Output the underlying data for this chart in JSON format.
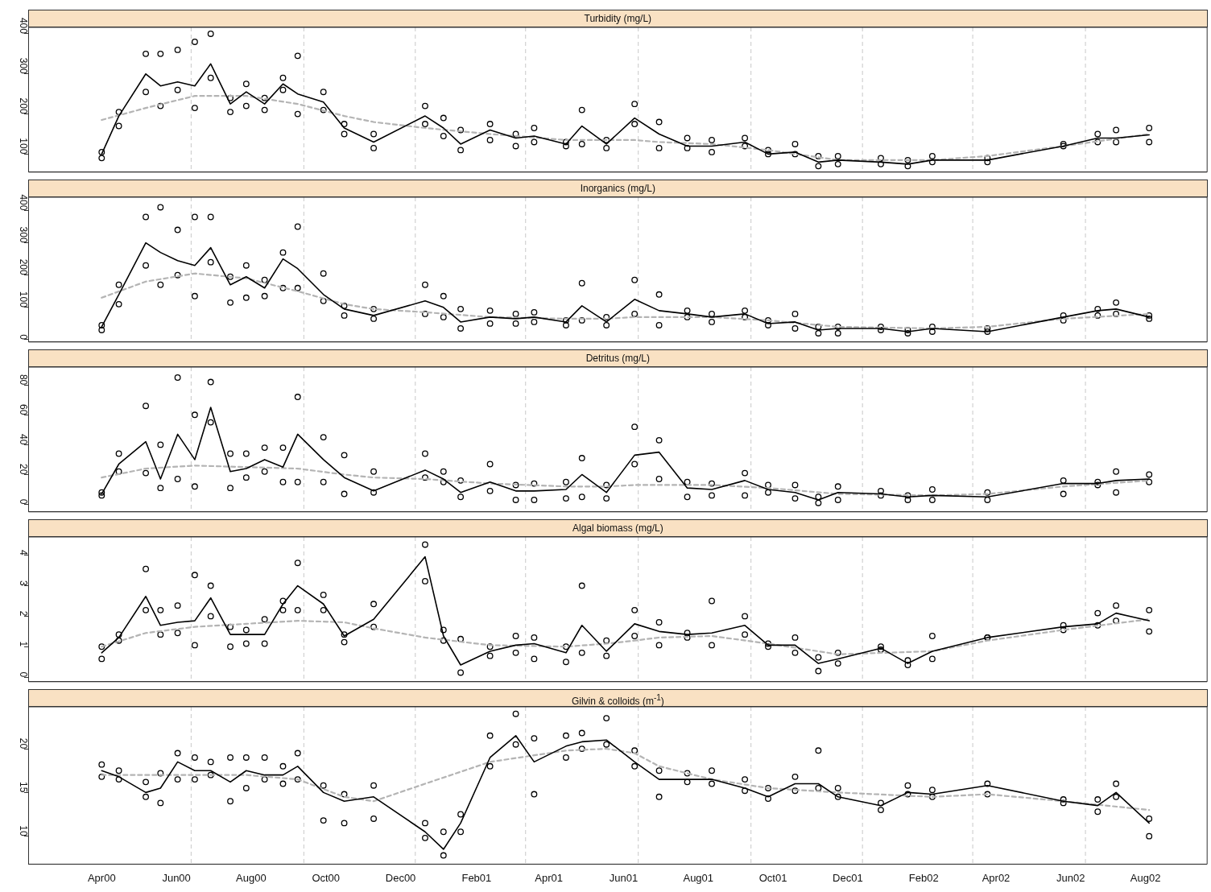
{
  "chart_data": [
    {
      "type": "scatter",
      "title": "Turbidity (mg/L)",
      "marker": "circle",
      "tick_labels": "y",
      "xlim": [
        "2000-02-01",
        "2002-09-20"
      ],
      "ylim": [
        55,
        416
      ],
      "yticks": [
        100,
        200,
        300,
        400
      ],
      "ref_lines": [
        {
          "axis": "x",
          "value": "2000-06-13",
          "color": "#c8c8c8",
          "line_style": "dashed"
        },
        {
          "axis": "x",
          "value": "2000-09-13",
          "color": "#c8c8c8",
          "line_style": "dashed"
        },
        {
          "axis": "x",
          "value": "2000-12-13",
          "color": "#c8c8c8",
          "line_style": "dashed"
        },
        {
          "axis": "x",
          "value": "2001-03-13",
          "color": "#c8c8c8",
          "line_style": "dashed"
        },
        {
          "axis": "x",
          "value": "2001-06-13",
          "color": "#c8c8c8",
          "line_style": "dashed"
        },
        {
          "axis": "x",
          "value": "2001-09-13",
          "color": "#c8c8c8",
          "line_style": "dashed"
        },
        {
          "axis": "x",
          "value": "2001-12-13",
          "color": "#c8c8c8",
          "line_style": "dashed"
        },
        {
          "axis": "x",
          "value": "2002-03-13",
          "color": "#c8c8c8",
          "line_style": "dashed"
        },
        {
          "axis": "x",
          "value": "2002-06-13",
          "color": "#c8c8c8",
          "line_style": "dashed"
        }
      ],
      "x": [
        "2000-04-01",
        "2000-04-15",
        "2000-05-07",
        "2000-05-19",
        "2000-06-02",
        "2000-06-16",
        "2000-06-29",
        "2000-07-15",
        "2000-07-28",
        "2000-08-12",
        "2000-08-27",
        "2000-09-08",
        "2000-09-29",
        "2000-10-16",
        "2000-11-09",
        "2000-12-21",
        "2001-01-05",
        "2001-01-19",
        "2001-02-12",
        "2001-03-05",
        "2001-03-20",
        "2001-04-15",
        "2001-04-28",
        "2001-05-18",
        "2001-06-10",
        "2001-06-30",
        "2001-07-23",
        "2001-08-12",
        "2001-09-08",
        "2001-09-27",
        "2001-10-19",
        "2001-11-07",
        "2001-11-23",
        "2001-12-28",
        "2002-01-19",
        "2002-02-08",
        "2002-03-25",
        "2002-05-26",
        "2002-06-23",
        "2002-07-08",
        "2002-08-04"
      ],
      "series": [
        {
          "type": "scatter",
          "color": "#000000",
          "values": [
            90,
            170,
            255,
            220,
            260,
            215,
            290,
            205,
            220,
            210,
            260,
            200,
            210,
            150,
            115,
            175,
            145,
            110,
            135,
            120,
            130,
            120,
            125,
            115,
            175,
            115,
            115,
            105,
            120,
            100,
            100,
            70,
            75,
            75,
            70,
            80,
            80,
            120,
            130,
            130,
            130
          ]
        },
        {
          "type": "scatter",
          "color": "#000000",
          "values": [
            105,
            205,
            350,
            350,
            360,
            380,
            400,
            240,
            275,
            240,
            290,
            345,
            255,
            175,
            150,
            220,
            190,
            160,
            175,
            150,
            165,
            130,
            210,
            135,
            225,
            180,
            140,
            135,
            140,
            110,
            125,
            95,
            95,
            90,
            85,
            95,
            90,
            125,
            150,
            160,
            165
          ]
        },
        {
          "type": "line",
          "color": "#000000",
          "marker": "none",
          "line_style": "solid",
          "values": [
            100,
            195,
            300,
            270,
            280,
            270,
            325,
            225,
            255,
            225,
            275,
            250,
            230,
            165,
            130,
            195,
            165,
            125,
            160,
            140,
            145,
            125,
            170,
            125,
            190,
            150,
            120,
            120,
            130,
            100,
            105,
            80,
            85,
            80,
            75,
            85,
            85,
            120,
            140,
            140,
            148
          ]
        },
        {
          "type": "line",
          "color": "#b4b4b4",
          "marker": "none",
          "line_style": "dashed",
          "x": [
            "2000-04-01",
            "2000-05-07",
            "2000-06-16",
            "2000-07-28",
            "2000-09-08",
            "2000-10-16",
            "2000-11-09",
            "2000-12-21",
            "2001-02-12",
            "2001-04-15",
            "2001-05-18",
            "2001-06-10",
            "2001-06-30",
            "2001-08-12",
            "2001-09-27",
            "2001-11-23",
            "2002-02-08",
            "2002-03-25",
            "2002-05-26",
            "2002-08-04"
          ],
          "values": [
            185,
            215,
            245,
            245,
            225,
            195,
            180,
            165,
            150,
            135,
            135,
            135,
            130,
            125,
            110,
            85,
            85,
            95,
            120,
            150
          ]
        }
      ]
    },
    {
      "type": "scatter",
      "title": "Inorganics (mg/L)",
      "marker": "circle",
      "tick_labels": "y",
      "xlim": [
        "2000-02-01",
        "2002-09-20"
      ],
      "ylim": [
        -7,
        441
      ],
      "yticks": [
        0,
        100,
        200,
        300,
        400
      ],
      "ref_lines": [
        {
          "axis": "x",
          "value": "2000-06-13",
          "color": "#c8c8c8",
          "line_style": "dashed"
        },
        {
          "axis": "x",
          "value": "2000-09-13",
          "color": "#c8c8c8",
          "line_style": "dashed"
        },
        {
          "axis": "x",
          "value": "2000-12-13",
          "color": "#c8c8c8",
          "line_style": "dashed"
        },
        {
          "axis": "x",
          "value": "2001-03-13",
          "color": "#c8c8c8",
          "line_style": "dashed"
        },
        {
          "axis": "x",
          "value": "2001-06-13",
          "color": "#c8c8c8",
          "line_style": "dashed"
        },
        {
          "axis": "x",
          "value": "2001-09-13",
          "color": "#c8c8c8",
          "line_style": "dashed"
        },
        {
          "axis": "x",
          "value": "2001-12-13",
          "color": "#c8c8c8",
          "line_style": "dashed"
        },
        {
          "axis": "x",
          "value": "2002-03-13",
          "color": "#c8c8c8",
          "line_style": "dashed"
        },
        {
          "axis": "x",
          "value": "2002-06-13",
          "color": "#c8c8c8",
          "line_style": "dashed"
        }
      ],
      "x": [
        "2000-04-01",
        "2000-04-15",
        "2000-05-07",
        "2000-05-19",
        "2000-06-02",
        "2000-06-16",
        "2000-06-29",
        "2000-07-15",
        "2000-07-28",
        "2000-08-12",
        "2000-08-27",
        "2000-09-08",
        "2000-09-29",
        "2000-10-16",
        "2000-11-09",
        "2000-12-21",
        "2001-01-05",
        "2001-01-19",
        "2001-02-12",
        "2001-03-05",
        "2001-03-20",
        "2001-04-15",
        "2001-04-28",
        "2001-05-18",
        "2001-06-10",
        "2001-06-30",
        "2001-07-23",
        "2001-08-12",
        "2001-09-08",
        "2001-09-27",
        "2001-10-19",
        "2001-11-07",
        "2001-11-23",
        "2001-12-28",
        "2002-01-19",
        "2002-02-08",
        "2002-03-25",
        "2002-05-26",
        "2002-06-23",
        "2002-07-08",
        "2002-08-04"
      ],
      "series": [
        {
          "type": "scatter",
          "color": "#000000",
          "values": [
            30,
            110,
            230,
            170,
            200,
            135,
            240,
            115,
            130,
            135,
            160,
            160,
            120,
            75,
            65,
            80,
            70,
            35,
            50,
            50,
            55,
            45,
            60,
            45,
            80,
            45,
            70,
            55,
            70,
            45,
            35,
            20,
            20,
            30,
            20,
            25,
            25,
            60,
            75,
            80,
            65
          ]
        },
        {
          "type": "scatter",
          "color": "#000000",
          "values": [
            45,
            170,
            380,
            410,
            340,
            380,
            380,
            195,
            230,
            185,
            270,
            350,
            205,
            105,
            95,
            170,
            135,
            95,
            90,
            80,
            85,
            60,
            175,
            70,
            185,
            140,
            90,
            80,
            90,
            60,
            80,
            40,
            40,
            40,
            30,
            40,
            35,
            75,
            95,
            115,
            75
          ]
        },
        {
          "type": "line",
          "color": "#000000",
          "marker": "none",
          "line_style": "solid",
          "values": [
            40,
            140,
            300,
            270,
            245,
            230,
            285,
            170,
            195,
            160,
            250,
            220,
            140,
            95,
            75,
            120,
            100,
            55,
            70,
            65,
            70,
            55,
            105,
            55,
            125,
            90,
            80,
            70,
            80,
            50,
            55,
            30,
            35,
            35,
            25,
            35,
            25,
            70,
            90,
            95,
            70
          ]
        },
        {
          "type": "line",
          "color": "#b4b4b4",
          "marker": "none",
          "line_style": "dashed",
          "x": [
            "2000-04-01",
            "2000-05-07",
            "2000-06-16",
            "2000-07-28",
            "2000-09-08",
            "2000-10-16",
            "2000-11-09",
            "2000-12-21",
            "2001-02-12",
            "2001-04-15",
            "2001-05-18",
            "2001-06-10",
            "2001-06-30",
            "2001-08-12",
            "2001-09-27",
            "2001-11-23",
            "2002-02-08",
            "2002-03-25",
            "2002-05-26",
            "2002-08-04"
          ],
          "values": [
            130,
            180,
            205,
            190,
            150,
            110,
            95,
            85,
            70,
            65,
            65,
            70,
            70,
            70,
            60,
            40,
            35,
            40,
            65,
            80
          ]
        }
      ]
    },
    {
      "type": "scatter",
      "title": "Detritus (mg/L)",
      "marker": "circle",
      "tick_labels": "y",
      "xlim": [
        "2000-02-01",
        "2002-09-20"
      ],
      "ylim": [
        -5,
        92
      ],
      "yticks": [
        0,
        20,
        40,
        60,
        80
      ],
      "ref_lines": [
        {
          "axis": "x",
          "value": "2000-06-13",
          "color": "#c8c8c8",
          "line_style": "dashed"
        },
        {
          "axis": "x",
          "value": "2000-09-13",
          "color": "#c8c8c8",
          "line_style": "dashed"
        },
        {
          "axis": "x",
          "value": "2000-12-13",
          "color": "#c8c8c8",
          "line_style": "dashed"
        },
        {
          "axis": "x",
          "value": "2001-03-13",
          "color": "#c8c8c8",
          "line_style": "dashed"
        },
        {
          "axis": "x",
          "value": "2001-06-13",
          "color": "#c8c8c8",
          "line_style": "dashed"
        },
        {
          "axis": "x",
          "value": "2001-09-13",
          "color": "#c8c8c8",
          "line_style": "dashed"
        },
        {
          "axis": "x",
          "value": "2001-12-13",
          "color": "#c8c8c8",
          "line_style": "dashed"
        },
        {
          "axis": "x",
          "value": "2002-03-13",
          "color": "#c8c8c8",
          "line_style": "dashed"
        },
        {
          "axis": "x",
          "value": "2002-06-13",
          "color": "#c8c8c8",
          "line_style": "dashed"
        }
      ],
      "x": [
        "2000-04-01",
        "2000-04-15",
        "2000-05-07",
        "2000-05-19",
        "2000-06-02",
        "2000-06-16",
        "2000-06-29",
        "2000-07-15",
        "2000-07-28",
        "2000-08-12",
        "2000-08-27",
        "2000-09-08",
        "2000-09-29",
        "2000-10-16",
        "2000-11-09",
        "2000-12-21",
        "2001-01-05",
        "2001-01-19",
        "2001-02-12",
        "2001-03-05",
        "2001-03-20",
        "2001-04-15",
        "2001-04-28",
        "2001-05-18",
        "2001-06-10",
        "2001-06-30",
        "2001-07-23",
        "2001-08-12",
        "2001-09-08",
        "2001-09-27",
        "2001-10-19",
        "2001-11-07",
        "2001-11-23",
        "2001-12-28",
        "2002-01-19",
        "2002-02-08",
        "2002-03-25",
        "2002-05-26",
        "2002-06-23",
        "2002-07-08",
        "2002-08-04"
      ],
      "series": [
        {
          "type": "scatter",
          "color": "#000000",
          "values": [
            6,
            22,
            21,
            11,
            17,
            12,
            55,
            11,
            18,
            22,
            15,
            15,
            15,
            7,
            8,
            18,
            15,
            5,
            9,
            3,
            3,
            4,
            5,
            4,
            27,
            17,
            5,
            6,
            6,
            8,
            4,
            1,
            3,
            6,
            3,
            3,
            3,
            7,
            13,
            8,
            15
          ]
        },
        {
          "type": "scatter",
          "color": "#000000",
          "values": [
            8,
            34,
            66,
            40,
            85,
            60,
            82,
            34,
            34,
            38,
            38,
            72,
            45,
            33,
            22,
            34,
            22,
            16,
            27,
            13,
            14,
            15,
            31,
            13,
            52,
            43,
            15,
            14,
            21,
            13,
            13,
            5,
            12,
            9,
            6,
            10,
            8,
            16,
            15,
            22,
            20
          ]
        },
        {
          "type": "line",
          "color": "#000000",
          "marker": "none",
          "line_style": "solid",
          "values": [
            7,
            27,
            42,
            17,
            47,
            30,
            65,
            22,
            24,
            30,
            25,
            47,
            30,
            18,
            9,
            23,
            17,
            8,
            15,
            9,
            9,
            10,
            20,
            8,
            33,
            35,
            11,
            10,
            16,
            10,
            8,
            3,
            8,
            7,
            5,
            6,
            5,
            14,
            14,
            16,
            17
          ]
        },
        {
          "type": "line",
          "color": "#b4b4b4",
          "marker": "none",
          "line_style": "dashed",
          "x": [
            "2000-04-01",
            "2000-05-07",
            "2000-06-16",
            "2000-07-28",
            "2000-09-08",
            "2000-10-16",
            "2000-11-09",
            "2000-12-21",
            "2001-02-12",
            "2001-04-15",
            "2001-05-18",
            "2001-06-10",
            "2001-06-30",
            "2001-08-12",
            "2001-09-27",
            "2001-11-23",
            "2002-02-08",
            "2002-03-25",
            "2002-05-26",
            "2002-08-04"
          ],
          "values": [
            18,
            24,
            26,
            25,
            24,
            20,
            18,
            17,
            14,
            12,
            12,
            13,
            13,
            13,
            11,
            7,
            6,
            7,
            12,
            16
          ]
        }
      ]
    },
    {
      "type": "scatter",
      "title": "Algal biomass (mg/L)",
      "marker": "circle",
      "tick_labels": "y",
      "xlim": [
        "2000-02-01",
        "2002-09-20"
      ],
      "ylim": [
        -0.15,
        4.6
      ],
      "yticks": [
        0,
        1,
        2,
        3,
        4
      ],
      "ref_lines": [
        {
          "axis": "x",
          "value": "2000-06-13",
          "color": "#c8c8c8",
          "line_style": "dashed"
        },
        {
          "axis": "x",
          "value": "2000-09-13",
          "color": "#c8c8c8",
          "line_style": "dashed"
        },
        {
          "axis": "x",
          "value": "2000-12-13",
          "color": "#c8c8c8",
          "line_style": "dashed"
        },
        {
          "axis": "x",
          "value": "2001-03-13",
          "color": "#c8c8c8",
          "line_style": "dashed"
        },
        {
          "axis": "x",
          "value": "2001-06-13",
          "color": "#c8c8c8",
          "line_style": "dashed"
        },
        {
          "axis": "x",
          "value": "2001-09-13",
          "color": "#c8c8c8",
          "line_style": "dashed"
        },
        {
          "axis": "x",
          "value": "2001-12-13",
          "color": "#c8c8c8",
          "line_style": "dashed"
        },
        {
          "axis": "x",
          "value": "2002-03-13",
          "color": "#c8c8c8",
          "line_style": "dashed"
        },
        {
          "axis": "x",
          "value": "2002-06-13",
          "color": "#c8c8c8",
          "line_style": "dashed"
        }
      ],
      "x": [
        "2000-04-01",
        "2000-04-15",
        "2000-05-07",
        "2000-05-19",
        "2000-06-02",
        "2000-06-16",
        "2000-06-29",
        "2000-07-15",
        "2000-07-28",
        "2000-08-12",
        "2000-08-27",
        "2000-09-08",
        "2000-09-29",
        "2000-10-16",
        "2000-11-09",
        "2000-12-21",
        "2001-01-05",
        "2001-01-19",
        "2001-02-12",
        "2001-03-05",
        "2001-03-20",
        "2001-04-15",
        "2001-04-28",
        "2001-05-18",
        "2001-06-10",
        "2001-06-30",
        "2001-07-23",
        "2001-08-12",
        "2001-09-08",
        "2001-09-27",
        "2001-10-19",
        "2001-11-07",
        "2001-11-23",
        "2001-12-28",
        "2002-01-19",
        "2002-02-08",
        "2002-03-25",
        "2002-05-26",
        "2002-06-23",
        "2002-07-08",
        "2002-08-04"
      ],
      "series": [
        {
          "type": "scatter",
          "color": "#000000",
          "values": [
            0.6,
            1.2,
            2.2,
            1.4,
            1.45,
            1.05,
            2.0,
            1.0,
            1.1,
            1.1,
            2.2,
            2.2,
            2.2,
            1.15,
            1.65,
            3.15,
            1.2,
            0.15,
            0.7,
            0.8,
            0.6,
            0.5,
            0.8,
            0.7,
            1.35,
            1.05,
            1.3,
            1.05,
            1.4,
            1.0,
            0.8,
            0.2,
            0.45,
            0.9,
            0.4,
            0.6,
            1.3,
            1.55,
            1.7,
            1.85,
            1.5
          ]
        },
        {
          "type": "scatter",
          "color": "#000000",
          "values": [
            1.0,
            1.4,
            3.55,
            2.2,
            2.35,
            3.35,
            3.0,
            1.65,
            1.55,
            1.9,
            2.5,
            3.75,
            2.7,
            1.4,
            2.4,
            4.35,
            1.55,
            1.25,
            1.0,
            1.35,
            1.3,
            1.0,
            3.0,
            1.2,
            2.2,
            1.8,
            1.45,
            2.5,
            2.0,
            1.1,
            1.3,
            0.65,
            0.8,
            1.0,
            0.55,
            1.35,
            1.3,
            1.7,
            2.1,
            2.35,
            2.2
          ]
        },
        {
          "type": "line",
          "color": "#000000",
          "marker": "none",
          "line_style": "solid",
          "values": [
            0.8,
            1.3,
            2.65,
            1.7,
            1.8,
            1.85,
            2.6,
            1.4,
            1.4,
            1.4,
            2.4,
            3.0,
            2.4,
            1.35,
            1.9,
            3.95,
            1.35,
            0.4,
            0.85,
            1.05,
            1.1,
            0.8,
            1.7,
            0.85,
            1.75,
            1.5,
            1.4,
            1.45,
            1.7,
            1.05,
            1.05,
            0.45,
            0.6,
            0.95,
            0.45,
            0.85,
            1.3,
            1.65,
            1.75,
            2.1,
            1.85
          ]
        },
        {
          "type": "line",
          "color": "#b4b4b4",
          "marker": "none",
          "line_style": "dashed",
          "x": [
            "2000-04-01",
            "2000-05-07",
            "2000-06-16",
            "2000-07-28",
            "2000-09-08",
            "2000-10-16",
            "2000-11-09",
            "2000-12-21",
            "2001-02-12",
            "2001-04-15",
            "2001-05-18",
            "2001-06-10",
            "2001-06-30",
            "2001-08-12",
            "2001-09-27",
            "2001-11-23",
            "2002-02-08",
            "2002-03-25",
            "2002-05-26",
            "2002-08-04"
          ],
          "values": [
            1.0,
            1.45,
            1.65,
            1.75,
            1.85,
            1.8,
            1.6,
            1.3,
            1.05,
            1.0,
            1.1,
            1.2,
            1.3,
            1.35,
            1.1,
            0.75,
            0.85,
            1.2,
            1.55,
            1.9
          ]
        }
      ]
    },
    {
      "type": "scatter",
      "title": "Gilvin & colloids (m$^{-1}$)",
      "marker": "circle",
      "xlim": [
        "2000-02-01",
        "2002-09-20"
      ],
      "xticks": [
        {
          "value": "2000-04-01",
          "label": "Apr00"
        },
        {
          "value": "2000-06-01",
          "label": "Jun00"
        },
        {
          "value": "2000-08-01",
          "label": "Aug00"
        },
        {
          "value": "2000-10-01",
          "label": "Oct00"
        },
        {
          "value": "2000-12-01",
          "label": "Dec00"
        },
        {
          "value": "2001-02-01",
          "label": "Feb01"
        },
        {
          "value": "2001-04-01",
          "label": "Apr01"
        },
        {
          "value": "2001-06-01",
          "label": "Jun01"
        },
        {
          "value": "2001-08-01",
          "label": "Aug01"
        },
        {
          "value": "2001-10-01",
          "label": "Oct01"
        },
        {
          "value": "2001-12-01",
          "label": "Dec01"
        },
        {
          "value": "2002-02-01",
          "label": "Feb02"
        },
        {
          "value": "2002-04-01",
          "label": "Apr02"
        },
        {
          "value": "2002-06-01",
          "label": "Jun02"
        },
        {
          "value": "2002-08-01",
          "label": "Aug02"
        }
      ],
      "ylim": [
        6.8,
        24.8
      ],
      "yticks": [
        10,
        15,
        20
      ],
      "ref_lines": [
        {
          "axis": "x",
          "value": "2000-06-13",
          "color": "#c8c8c8",
          "line_style": "dashed"
        },
        {
          "axis": "x",
          "value": "2000-09-13",
          "color": "#c8c8c8",
          "line_style": "dashed"
        },
        {
          "axis": "x",
          "value": "2000-12-13",
          "color": "#c8c8c8",
          "line_style": "dashed"
        },
        {
          "axis": "x",
          "value": "2001-03-13",
          "color": "#c8c8c8",
          "line_style": "dashed"
        },
        {
          "axis": "x",
          "value": "2001-06-13",
          "color": "#c8c8c8",
          "line_style": "dashed"
        },
        {
          "axis": "x",
          "value": "2001-09-13",
          "color": "#c8c8c8",
          "line_style": "dashed"
        },
        {
          "axis": "x",
          "value": "2001-12-13",
          "color": "#c8c8c8",
          "line_style": "dashed"
        },
        {
          "axis": "x",
          "value": "2002-03-13",
          "color": "#c8c8c8",
          "line_style": "dashed"
        },
        {
          "axis": "x",
          "value": "2002-06-13",
          "color": "#c8c8c8",
          "line_style": "dashed"
        }
      ],
      "x": [
        "2000-04-01",
        "2000-04-15",
        "2000-05-07",
        "2000-05-19",
        "2000-06-02",
        "2000-06-16",
        "2000-06-29",
        "2000-07-15",
        "2000-07-28",
        "2000-08-12",
        "2000-08-27",
        "2000-09-08",
        "2000-09-29",
        "2000-10-16",
        "2000-11-09",
        "2000-12-21",
        "2001-01-05",
        "2001-01-19",
        "2001-02-12",
        "2001-03-05",
        "2001-03-20",
        "2001-04-15",
        "2001-04-28",
        "2001-05-18",
        "2001-06-10",
        "2001-06-30",
        "2001-07-23",
        "2001-08-12",
        "2001-09-08",
        "2001-09-27",
        "2001-10-19",
        "2001-11-07",
        "2001-11-23",
        "2001-12-28",
        "2002-01-19",
        "2002-02-08",
        "2002-03-25",
        "2002-05-26",
        "2002-06-23",
        "2002-07-08",
        "2002-08-04"
      ],
      "series": [
        {
          "type": "scatter",
          "color": "#000000",
          "values": [
            16.8,
            16.5,
            14.5,
            13.8,
            16.5,
            16.5,
            17,
            14,
            15.5,
            16.5,
            16,
            16.5,
            11.8,
            11.5,
            12,
            9.8,
            7.8,
            10.5,
            18,
            20.5,
            14.8,
            19,
            20,
            20.5,
            18,
            14.5,
            16.2,
            16,
            15.2,
            14.3,
            15.2,
            15.5,
            14.5,
            13,
            14.8,
            14.5,
            14.8,
            13.8,
            12.8,
            14.5,
            10
          ]
        },
        {
          "type": "scatter",
          "color": "#000000",
          "values": [
            18.2,
            17.5,
            16.2,
            17.2,
            19.5,
            19,
            18.5,
            19,
            19,
            19,
            18,
            19.5,
            15.8,
            14.8,
            15.8,
            11.5,
            10.5,
            12.5,
            21.5,
            24,
            21.2,
            21.5,
            21.8,
            23.5,
            19.8,
            17.5,
            17.2,
            17.5,
            16.5,
            15.5,
            16.8,
            19.8,
            15.5,
            13.8,
            15.8,
            15.3,
            16,
            14.2,
            14.2,
            16,
            12
          ]
        },
        {
          "type": "line",
          "color": "#000000",
          "marker": "none",
          "line_style": "solid",
          "values": [
            17.5,
            16.8,
            15,
            15.5,
            18.5,
            17.5,
            17.5,
            16.2,
            17.5,
            17,
            17,
            18,
            15,
            14,
            14.5,
            10.5,
            8.5,
            11.5,
            19,
            21.5,
            18.5,
            20.3,
            20.8,
            21,
            18.5,
            16.5,
            16.5,
            16.5,
            15.5,
            14.5,
            16,
            16,
            14.5,
            13.5,
            15,
            14.8,
            15.8,
            14,
            13.5,
            15,
            11.5
          ]
        },
        {
          "type": "line",
          "color": "#b4b4b4",
          "marker": "none",
          "line_style": "dashed",
          "x": [
            "2000-04-01",
            "2000-05-07",
            "2000-06-16",
            "2000-07-28",
            "2000-09-08",
            "2000-10-16",
            "2000-11-09",
            "2000-12-21",
            "2001-02-12",
            "2001-04-15",
            "2001-05-18",
            "2001-06-10",
            "2001-06-30",
            "2001-08-12",
            "2001-09-27",
            "2001-11-23",
            "2002-02-08",
            "2002-03-25",
            "2002-05-26",
            "2002-08-04"
          ],
          "values": [
            17,
            17,
            17,
            17,
            16.5,
            14.5,
            14,
            16,
            18.5,
            19.8,
            20,
            19.5,
            18,
            16.5,
            15.5,
            15,
            14.5,
            14.8,
            14,
            13
          ]
        }
      ]
    }
  ]
}
